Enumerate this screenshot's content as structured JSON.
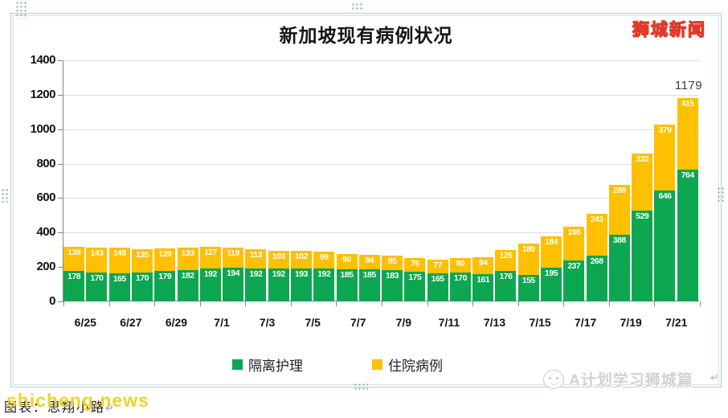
{
  "page": {
    "brand_top_right": "狮城新闻",
    "watermark_yellow": "shicheng.news",
    "caption": "图表：思翔小路",
    "paragraph_mark": "↵",
    "watermark_gray": "A计划学习狮城篇"
  },
  "colors": {
    "series_green": "#0CA750",
    "series_yellow": "#FFC000",
    "gridline": "#DCDCDC",
    "axis": "#868686",
    "brand_yellow": "#FFE24A",
    "brand_red_outline": "#E03A2A"
  },
  "chart_data": {
    "type": "bar",
    "stacked": true,
    "title": "新加坡现有病例状况",
    "bar_count": 28,
    "x_tick_labels": [
      "6/25",
      "6/27",
      "6/29",
      "7/1",
      "7/3",
      "7/5",
      "7/7",
      "7/9",
      "7/11",
      "7/13",
      "7/15",
      "7/17",
      "7/19",
      "7/21"
    ],
    "bars_per_tick": 2,
    "ylim": [
      0,
      1400
    ],
    "yticks": [
      0,
      200,
      400,
      600,
      800,
      1000,
      1200,
      1400
    ],
    "grid": true,
    "legend_position": "bottom",
    "series": [
      {
        "name": "隔离护理",
        "color": "#0CA750",
        "values": [
          178,
          170,
          165,
          170,
          179,
          182,
          192,
          194,
          192,
          192,
          193,
          192,
          185,
          185,
          183,
          175,
          165,
          170,
          161,
          176,
          155,
          195,
          237,
          268,
          388,
          529,
          646,
          764
        ]
      },
      {
        "name": "住院病例",
        "color": "#FFC000",
        "values": [
          139,
          143,
          148,
          135,
          129,
          133,
          127,
          119,
          113,
          103,
          102,
          99,
          90,
          84,
          85,
          76,
          77,
          80,
          94,
          125,
          180,
          184,
          196,
          243,
          289,
          332,
          379,
          415
        ]
      }
    ],
    "annotations": [
      {
        "text": "1179",
        "bar_index": 27
      }
    ]
  }
}
